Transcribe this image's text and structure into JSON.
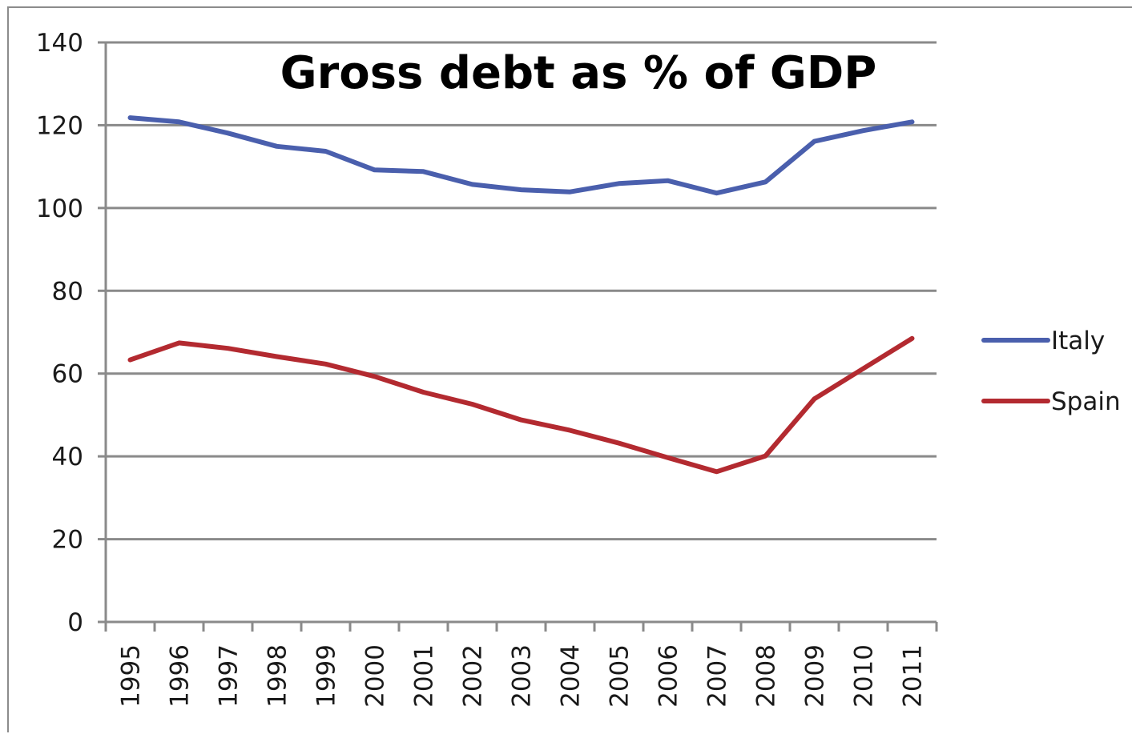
{
  "chart_data": {
    "type": "line",
    "title": "Gross debt as % of GDP",
    "xlabel": "",
    "ylabel": "",
    "categories": [
      "1995",
      "1996",
      "1997",
      "1998",
      "1999",
      "2000",
      "2001",
      "2002",
      "2003",
      "2004",
      "2005",
      "2006",
      "2007",
      "2008",
      "2009",
      "2010",
      "2011"
    ],
    "ylim": [
      0,
      140
    ],
    "yticks": [
      "0",
      "20",
      "40",
      "60",
      "80",
      "100",
      "120",
      "140"
    ],
    "grid": true,
    "legend_position": "right",
    "series": [
      {
        "name": "Italy",
        "color": "#4a5fad",
        "values": [
          121.8,
          120.8,
          118.1,
          114.9,
          113.7,
          109.2,
          108.8,
          105.7,
          104.4,
          103.9,
          105.9,
          106.6,
          103.6,
          106.3,
          116.1,
          118.7,
          120.8
        ]
      },
      {
        "name": "Spain",
        "color": "#b32a30",
        "values": [
          63.3,
          67.4,
          66.1,
          64.1,
          62.3,
          59.3,
          55.5,
          52.6,
          48.8,
          46.3,
          43.2,
          39.7,
          36.3,
          40.1,
          53.9,
          61.2,
          68.5
        ]
      }
    ]
  }
}
